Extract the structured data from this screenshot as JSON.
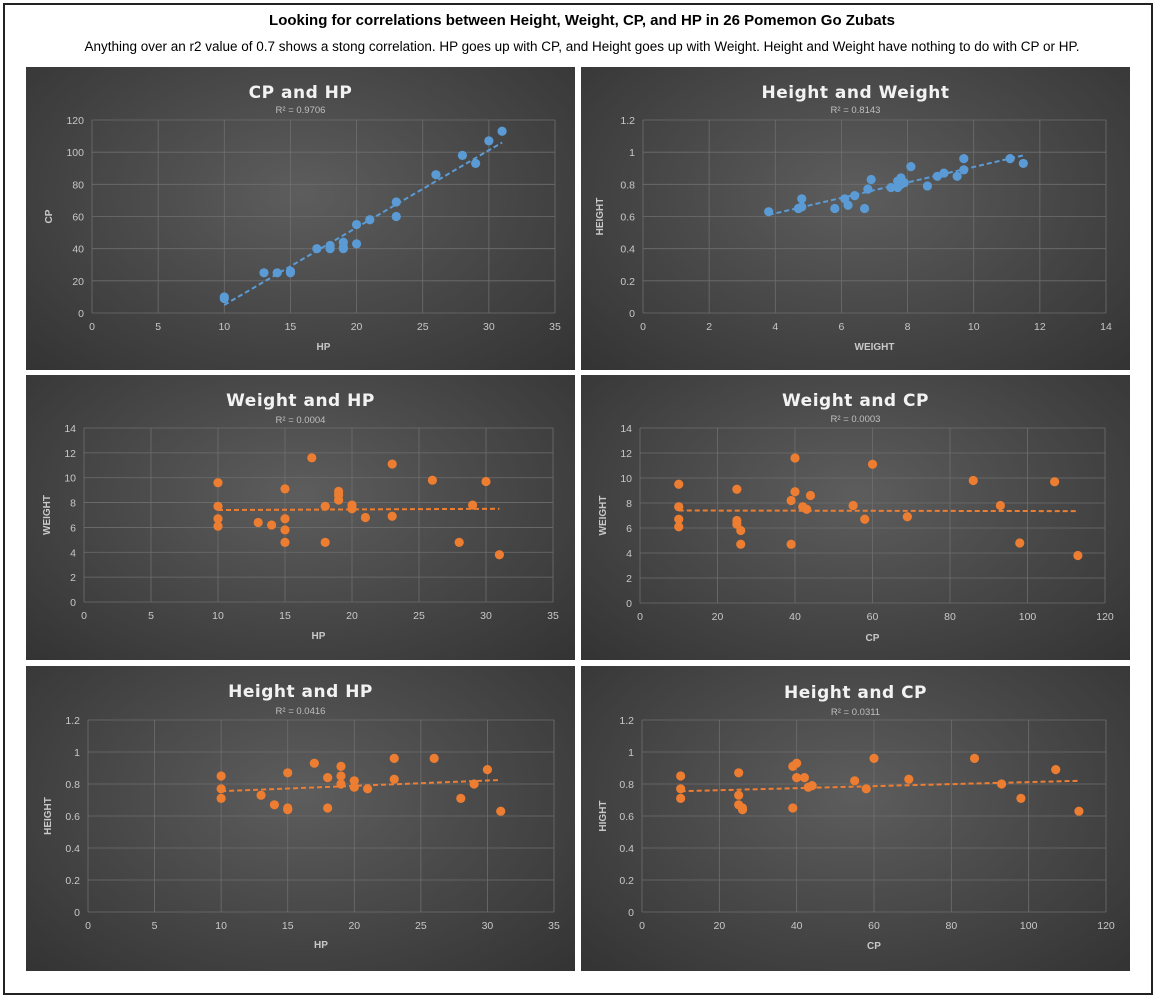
{
  "header": {
    "title": "Looking for correlations between Height, Weight, CP, and HP in 26 Pomemon Go Zubats",
    "subtitle": "Anything over an r2 value of 0.7 shows a stong correlation. HP goes up with CP, and Height goes up with Weight. Height and Weight have nothing to do with CP or HP."
  },
  "colors": {
    "blue": "#5b9bd5",
    "orange": "#ed7d31"
  },
  "chart_data": [
    {
      "type": "scatter",
      "title": "CP and HP",
      "subtitle": "R² = 0.9706",
      "xlabel": "HP",
      "ylabel": "CP",
      "xlim": [
        0,
        35
      ],
      "ylim": [
        0,
        120
      ],
      "xticks": [
        0,
        5,
        10,
        15,
        20,
        25,
        30,
        35
      ],
      "yticks": [
        0,
        20,
        40,
        60,
        80,
        100,
        120
      ],
      "color": "#5b9bd5",
      "x": [
        10,
        10,
        13,
        14,
        15,
        15,
        17,
        18,
        18,
        19,
        19,
        19,
        20,
        20,
        21,
        23,
        23,
        26,
        28,
        29,
        30,
        31
      ],
      "y": [
        9,
        10,
        25,
        25,
        25,
        26,
        40,
        40,
        42,
        40,
        41,
        44,
        43,
        55,
        58,
        60,
        69,
        86,
        98,
        93,
        107,
        113
      ],
      "trendline": {
        "x": [
          10,
          31
        ],
        "y": [
          5,
          106
        ]
      }
    },
    {
      "type": "scatter",
      "title": "Height and Weight",
      "subtitle": "R² = 0.8143",
      "xlabel": "WEIGHT",
      "ylabel": "HEIGHT",
      "xlim": [
        0,
        14
      ],
      "ylim": [
        0,
        1.2
      ],
      "xticks": [
        0,
        2,
        4,
        6,
        8,
        10,
        12,
        14
      ],
      "yticks": [
        0,
        0.2,
        0.4,
        0.6,
        0.8,
        1,
        1.2
      ],
      "color": "#5b9bd5",
      "x": [
        3.8,
        4.7,
        4.8,
        4.8,
        4.7,
        5.8,
        6.1,
        6.2,
        6.4,
        6.7,
        6.8,
        6.9,
        7.5,
        7.7,
        7.8,
        7.8,
        7.7,
        7.9,
        8.1,
        8.6,
        8.9,
        9.1,
        9.5,
        9.7,
        9.7,
        11.1,
        11.5
      ],
      "y": [
        0.63,
        0.65,
        0.66,
        0.71,
        0.65,
        0.65,
        0.71,
        0.67,
        0.73,
        0.65,
        0.77,
        0.83,
        0.78,
        0.78,
        0.8,
        0.84,
        0.82,
        0.81,
        0.91,
        0.79,
        0.85,
        0.87,
        0.85,
        0.89,
        0.96,
        0.96,
        0.93
      ],
      "trendline": {
        "x": [
          3.8,
          11.5
        ],
        "y": [
          0.61,
          0.98
        ]
      }
    },
    {
      "type": "scatter",
      "title": "Weight and HP",
      "subtitle": "R² = 0.0004",
      "xlabel": "HP",
      "ylabel": "WEIGHT",
      "xlim": [
        0,
        35
      ],
      "ylim": [
        0,
        14
      ],
      "xticks": [
        0,
        5,
        10,
        15,
        20,
        25,
        30,
        35
      ],
      "yticks": [
        0,
        2,
        4,
        6,
        8,
        10,
        12,
        14
      ],
      "color": "#ed7d31",
      "x": [
        10,
        10,
        10,
        10,
        13,
        14,
        15,
        15,
        15,
        15,
        17,
        18,
        18,
        19,
        19,
        19,
        20,
        20,
        21,
        23,
        23,
        26,
        28,
        29,
        30,
        31
      ],
      "y": [
        9.6,
        7.7,
        6.7,
        6.1,
        6.4,
        6.2,
        9.1,
        6.7,
        5.8,
        4.8,
        11.6,
        7.7,
        4.8,
        8.9,
        8.6,
        8.2,
        7.8,
        7.5,
        6.8,
        11.1,
        6.9,
        9.8,
        4.8,
        7.8,
        9.7,
        3.8
      ],
      "trendline": {
        "x": [
          10,
          31
        ],
        "y": [
          7.4,
          7.5
        ]
      }
    },
    {
      "type": "scatter",
      "title": "Weight and CP",
      "subtitle": "R² = 0.0003",
      "xlabel": "CP",
      "ylabel": "WEIGHT",
      "xlim": [
        0,
        120
      ],
      "ylim": [
        0,
        14
      ],
      "xticks": [
        0,
        20,
        40,
        60,
        80,
        100,
        120
      ],
      "yticks": [
        0,
        2,
        4,
        6,
        8,
        10,
        12,
        14
      ],
      "color": "#ed7d31",
      "x": [
        10,
        10,
        10,
        10,
        25,
        25,
        25,
        26,
        26,
        39,
        39,
        40,
        40,
        42,
        43,
        44,
        55,
        58,
        60,
        69,
        86,
        93,
        98,
        107,
        113
      ],
      "y": [
        9.5,
        7.7,
        6.7,
        6.1,
        9.1,
        6.6,
        6.3,
        5.8,
        4.7,
        8.2,
        4.7,
        11.6,
        8.9,
        7.7,
        7.5,
        8.6,
        7.8,
        6.7,
        11.1,
        6.9,
        9.8,
        7.8,
        4.8,
        9.7,
        3.8
      ],
      "trendline": {
        "x": [
          10,
          113
        ],
        "y": [
          7.4,
          7.35
        ]
      }
    },
    {
      "type": "scatter",
      "title": "Height and HP",
      "subtitle": "R² = 0.0416",
      "xlabel": "HP",
      "ylabel": "HEIGHT",
      "xlim": [
        0,
        35
      ],
      "ylim": [
        0,
        1.2
      ],
      "xticks": [
        0,
        5,
        10,
        15,
        20,
        25,
        30,
        35
      ],
      "yticks": [
        0,
        0.2,
        0.4,
        0.6,
        0.8,
        1,
        1.2
      ],
      "color": "#ed7d31",
      "x": [
        10,
        10,
        10,
        13,
        14,
        15,
        15,
        15,
        17,
        18,
        18,
        19,
        19,
        19,
        20,
        20,
        21,
        23,
        23,
        26,
        28,
        29,
        30,
        31
      ],
      "y": [
        0.85,
        0.77,
        0.71,
        0.73,
        0.67,
        0.87,
        0.65,
        0.64,
        0.93,
        0.84,
        0.65,
        0.91,
        0.85,
        0.8,
        0.82,
        0.78,
        0.77,
        0.96,
        0.83,
        0.96,
        0.71,
        0.8,
        0.89,
        0.63
      ],
      "trendline": {
        "x": [
          10,
          31
        ],
        "y": [
          0.755,
          0.825
        ]
      }
    },
    {
      "type": "scatter",
      "title": "Height and CP",
      "subtitle": "R² = 0.0311",
      "xlabel": "CP",
      "ylabel": "HIGHT",
      "xlim": [
        0,
        120
      ],
      "ylim": [
        0,
        1.2
      ],
      "xticks": [
        0,
        20,
        40,
        60,
        80,
        100,
        120
      ],
      "yticks": [
        0,
        0.2,
        0.4,
        0.6,
        0.8,
        1,
        1.2
      ],
      "color": "#ed7d31",
      "x": [
        10,
        10,
        10,
        25,
        25,
        25,
        26,
        26,
        39,
        39,
        40,
        40,
        42,
        43,
        44,
        55,
        58,
        60,
        69,
        86,
        93,
        98,
        107,
        113
      ],
      "y": [
        0.85,
        0.77,
        0.71,
        0.87,
        0.73,
        0.67,
        0.65,
        0.64,
        0.91,
        0.65,
        0.93,
        0.84,
        0.84,
        0.78,
        0.79,
        0.82,
        0.77,
        0.96,
        0.83,
        0.96,
        0.8,
        0.71,
        0.89,
        0.63
      ],
      "trendline": {
        "x": [
          10,
          113
        ],
        "y": [
          0.755,
          0.82
        ]
      }
    }
  ]
}
